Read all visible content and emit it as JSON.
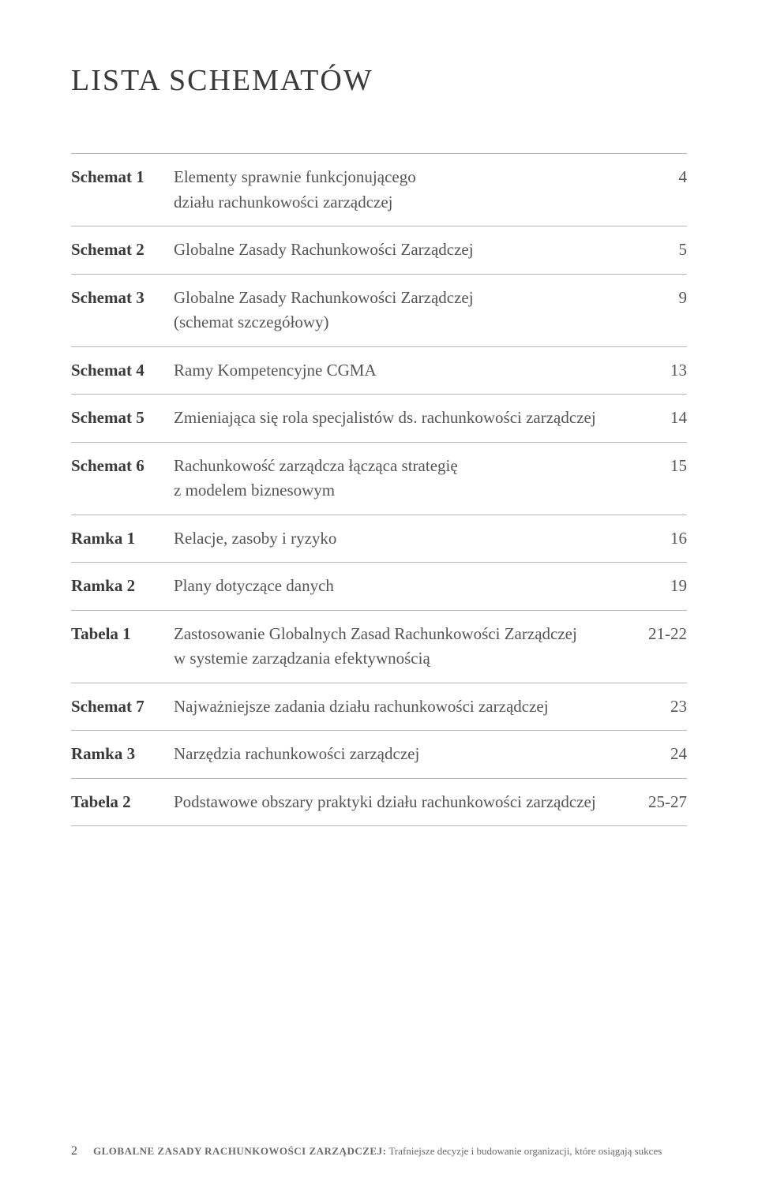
{
  "title": "LISTA SCHEMATÓW",
  "rows": [
    {
      "label": "Schemat 1",
      "desc": "Elementy sprawnie funkcjonującego",
      "desc2": "działu rachunkowości zarządczej",
      "page": "4"
    },
    {
      "label": "Schemat 2",
      "desc": "Globalne Zasady Rachunkowości Zarządczej",
      "page": "5"
    },
    {
      "label": "Schemat 3",
      "desc": "Globalne Zasady Rachunkowości Zarządczej",
      "desc2": "(schemat szczegółowy)",
      "page": "9"
    },
    {
      "label": "Schemat 4",
      "desc": "Ramy Kompetencyjne CGMA",
      "page": "13"
    },
    {
      "label": "Schemat 5",
      "desc": "Zmieniająca się rola specjalistów ds. rachunkowości zarządczej",
      "page": "14"
    },
    {
      "label": "Schemat 6",
      "desc": "Rachunkowość zarządcza łącząca strategię",
      "desc2": "z modelem biznesowym",
      "page": "15"
    },
    {
      "label": "Ramka 1",
      "desc": "Relacje, zasoby i ryzyko",
      "page": "16"
    },
    {
      "label": "Ramka 2",
      "desc": "Plany dotyczące danych",
      "page": "19"
    },
    {
      "label": "Tabela 1",
      "desc": "Zastosowanie Globalnych Zasad Rachunkowości Zarządczej",
      "desc2": "w systemie zarządzania efektywnością",
      "page": "21-22"
    },
    {
      "label": "Schemat 7",
      "desc": "Najważniejsze zadania działu rachunkowości zarządczej",
      "page": "23"
    },
    {
      "label": "Ramka 3",
      "desc": "Narzędzia rachunkowości zarządczej",
      "page": "24"
    },
    {
      "label": "Tabela 2",
      "desc": "Podstawowe obszary praktyki działu rachunkowości zarządczej",
      "page": "25-27"
    }
  ],
  "footer": {
    "pagenum": "2",
    "bold": "GLOBALNE ZASADY RACHUNKOWOŚCI ZARZĄDCZEJ:",
    "rest": " Trafniejsze decyzje i budowanie organizacji, które osiągają sukces"
  }
}
